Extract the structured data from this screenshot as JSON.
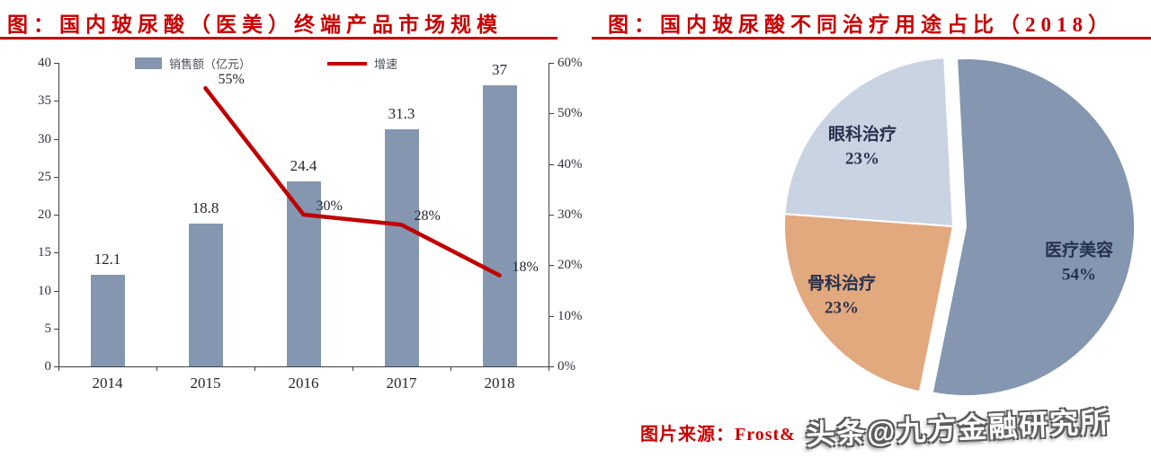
{
  "titles": {
    "left": "图：国内玻尿酸（医美）终端产品市场规模",
    "right": "图：国内玻尿酸不同治疗用途占比（2018）"
  },
  "source": {
    "label": "图片来源：Frost&"
  },
  "watermark": {
    "text": "头条@九方金融研究所"
  },
  "colors": {
    "title_red": "#c80000",
    "bar": "#8496b0",
    "line": "#c00000",
    "pie_medical": "#8496b0",
    "pie_ortho": "#e2a87e",
    "pie_eye": "#cad3e2"
  },
  "chart_data": [
    {
      "type": "bar",
      "title": "国内玻尿酸（医美）终端产品市场规模",
      "categories": [
        "2014",
        "2015",
        "2016",
        "2017",
        "2018"
      ],
      "series": [
        {
          "name": "销售额（亿元）",
          "chart": "bar",
          "axis": "left",
          "color": "#8496b0",
          "values": [
            12.1,
            18.8,
            24.4,
            31.3,
            37
          ]
        },
        {
          "name": "增速",
          "chart": "line",
          "axis": "right",
          "color": "#c00000",
          "values": [
            null,
            55,
            30,
            28,
            18
          ],
          "unit": "%"
        }
      ],
      "value_labels": [
        "12.1",
        "18.8",
        "24.4",
        "31.3",
        "37"
      ],
      "line_labels": [
        "55%",
        "30%",
        "28%",
        "18%"
      ],
      "left_axis": {
        "min": 0,
        "max": 40,
        "step": 5,
        "ticks": [
          "40",
          "35",
          "30",
          "25",
          "20",
          "15",
          "10",
          "5",
          "0"
        ]
      },
      "right_axis": {
        "min": 0,
        "max": 60,
        "step": 10,
        "ticks": [
          "60%",
          "50%",
          "40%",
          "30%",
          "20%",
          "10%",
          "0%"
        ]
      },
      "grid": false,
      "legend_position": "top"
    },
    {
      "type": "pie",
      "title": "国内玻尿酸不同治疗用途占比（2018）",
      "slices": [
        {
          "key": "medical-aesthetics",
          "label": "医疗美容",
          "pct": 54,
          "color": "#8496b0",
          "exploded": true
        },
        {
          "key": "orthopedic-treatment",
          "label": "骨科治疗",
          "pct": 23,
          "color": "#e2a87e",
          "exploded": false
        },
        {
          "key": "ophthalmic-treatment",
          "label": "眼科治疗",
          "pct": 23,
          "color": "#cad3e2",
          "exploded": false
        }
      ]
    }
  ]
}
